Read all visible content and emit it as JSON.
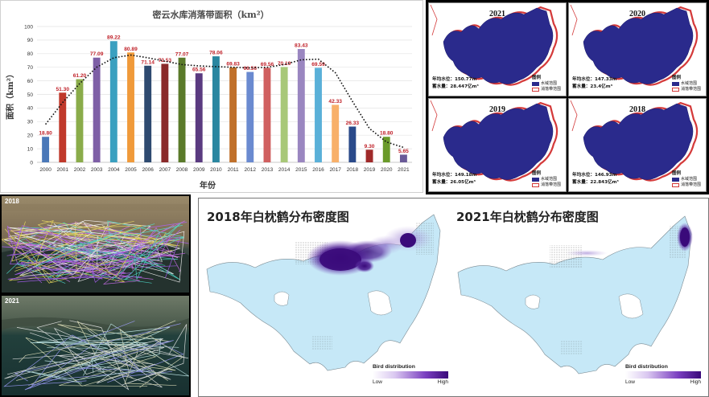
{
  "chart_data": {
    "type": "bar",
    "title": "密云水库消落带面积（km²）",
    "xlabel": "年份",
    "ylabel": "面积（km²）",
    "ylim": [
      0,
      100
    ],
    "yticks": [
      0,
      10,
      20,
      30,
      40,
      50,
      60,
      70,
      80,
      90,
      100
    ],
    "grid": true,
    "categories": [
      "2000",
      "2001",
      "2002",
      "2003",
      "2004",
      "2005",
      "2006",
      "2007",
      "2008",
      "2009",
      "2010",
      "2011",
      "2012",
      "2013",
      "2014",
      "2015",
      "2016",
      "2017",
      "2018",
      "2019",
      "2020",
      "2021"
    ],
    "values": [
      18.8,
      51.3,
      61.2,
      77.09,
      89.22,
      80.89,
      71.14,
      72.53,
      77.07,
      65.56,
      78.06,
      69.83,
      66.56,
      69.56,
      70.19,
      83.43,
      69.59,
      42.33,
      26.33,
      9.3,
      18.8,
      5.65
    ],
    "value_labels": [
      "18.80",
      "51.30",
      "61.20",
      "77.09",
      "89.22",
      "80.89",
      "71.14",
      "72.53",
      "77.07",
      "65.56",
      "78.06",
      "69.83",
      "66.56",
      "69.56",
      "70.19",
      "83.43",
      "69.59",
      "42.33",
      "26.33",
      "9.30",
      "18.80",
      "5.65"
    ],
    "bar_colors": [
      "#4a78b8",
      "#c0392b",
      "#8aac4a",
      "#7e5fa6",
      "#3aa0c0",
      "#f09a3a",
      "#2e4a70",
      "#8a2a2a",
      "#5a7a2a",
      "#5a3a80",
      "#2a86a0",
      "#c0702a",
      "#6a8ad0",
      "#d06060",
      "#a8c878",
      "#9a86c0",
      "#5ab0d8",
      "#f8b06a",
      "#2a4a8a",
      "#a02a2a",
      "#6a9a2a",
      "#6a5a98"
    ],
    "trendline": [
      28,
      44,
      58,
      70,
      77,
      79,
      77,
      74.5,
      72,
      71,
      70.5,
      70,
      69.5,
      70,
      72,
      75.5,
      76,
      66,
      45,
      25,
      15,
      11
    ]
  },
  "reservoir_maps": {
    "legend_title": "图例",
    "legend_water": "水域范围",
    "legend_marsh": "消落带范围",
    "cards": [
      {
        "year": "2021",
        "level": "年均水位：150.77m",
        "storage": "蓄水量：28.447亿m³"
      },
      {
        "year": "2020",
        "level": "年均水位：147.33m",
        "storage": "蓄水量：23.4亿m³"
      },
      {
        "year": "2019",
        "level": "年均水位：149.18m",
        "storage": "蓄水量：26.05亿m³"
      },
      {
        "year": "2018",
        "level": "年均水位：146.93m",
        "storage": "蓄水量：22.843亿m³"
      }
    ],
    "water_color": "#2a2a8c",
    "marsh_color": "#d43a3a"
  },
  "satellite": {
    "top_year": "2018",
    "bottom_year": "2021"
  },
  "density": {
    "left_title": "2018年白枕鹤分布密度图",
    "right_title": "2021年白枕鹤分布密度图",
    "legend_title": "Bird distribution",
    "legend_low": "Low",
    "legend_high": "High",
    "lake_color": "#c6e8f7",
    "density_color": "#3a0a7a"
  }
}
